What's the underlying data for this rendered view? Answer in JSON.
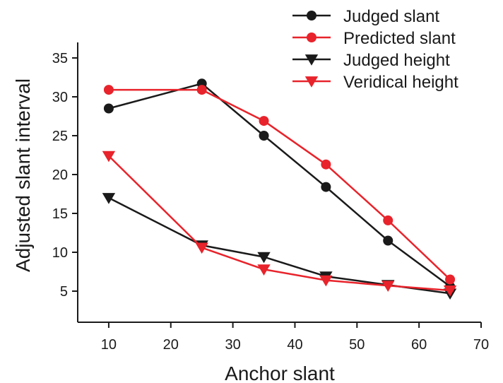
{
  "chart_data": {
    "type": "line",
    "title": "",
    "xlabel": "Anchor slant",
    "ylabel": "Adjusted slant interval",
    "xlim": [
      5,
      70
    ],
    "ylim": [
      1,
      37
    ],
    "xticks": [
      10,
      20,
      30,
      40,
      50,
      60,
      70
    ],
    "yticks": [
      5,
      10,
      15,
      20,
      25,
      30,
      35
    ],
    "grid": false,
    "legend_position": "top-right",
    "x": [
      10,
      25,
      35,
      45,
      55,
      65
    ],
    "series": [
      {
        "name": "Judged slant",
        "marker": "circle",
        "color": "#1a1a1a",
        "values": [
          28.5,
          31.7,
          25.0,
          18.4,
          11.5,
          5.6
        ]
      },
      {
        "name": "Predicted slant",
        "marker": "circle",
        "color": "#e8232b",
        "values": [
          30.9,
          30.9,
          26.9,
          21.3,
          14.1,
          6.5
        ]
      },
      {
        "name": "Judged height",
        "marker": "triangle-down",
        "color": "#1a1a1a",
        "values": [
          17.0,
          10.9,
          9.4,
          6.9,
          5.8,
          4.7
        ]
      },
      {
        "name": "Veridical height",
        "marker": "triangle-down",
        "color": "#e8232b",
        "values": [
          22.4,
          10.6,
          7.8,
          6.4,
          5.7,
          5.1
        ]
      }
    ]
  }
}
